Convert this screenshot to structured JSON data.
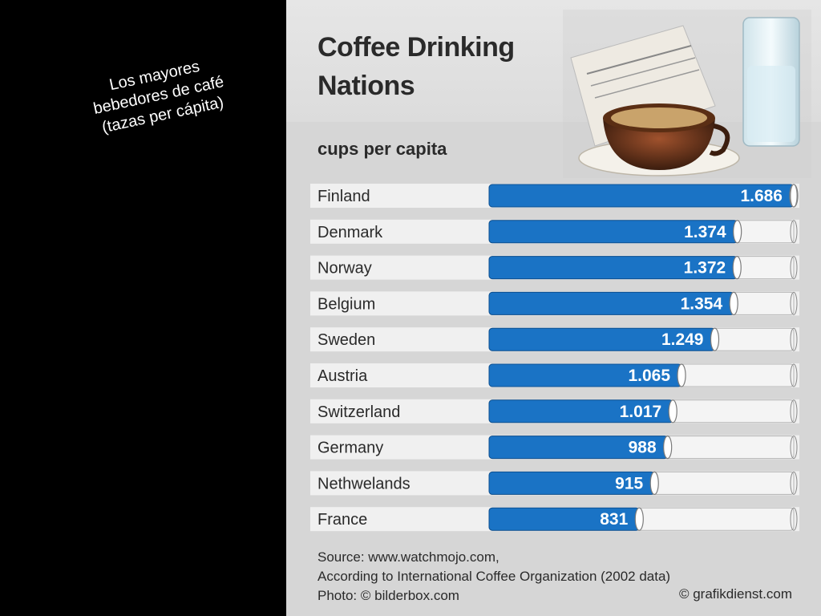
{
  "caption": {
    "lines": [
      "Los mayores",
      "bebedores de café",
      "(tazas per cápita)"
    ]
  },
  "header": {
    "title_line1": "Coffee Drinking",
    "title_line2": "Nations",
    "subtitle": "cups per capita"
  },
  "footer": {
    "source_line1": "Source: www.watchmojo.com,",
    "source_line2": "According to International Coffee Organization (2002 data)",
    "photo_credit": "Photo: © bilderbox.com",
    "graphic_credit": "© grafikdienst.com"
  },
  "colors": {
    "bar_fill": "#1a73c5",
    "bar_track": "#f4f4f4",
    "row_stripe": "#f0f0f0",
    "background": "#d6d6d6"
  },
  "chart_data": {
    "type": "bar",
    "orientation": "horizontal",
    "title": "Coffee Drinking Nations",
    "subtitle": "cups per capita",
    "categories": [
      "Finland",
      "Denmark",
      "Norway",
      "Belgium",
      "Sweden",
      "Austria",
      "Switzerland",
      "Germany",
      "Nethwelands",
      "France"
    ],
    "values": [
      1686,
      1374,
      1372,
      1354,
      1249,
      1065,
      1017,
      988,
      915,
      831
    ],
    "value_labels": [
      "1.686",
      "1.374",
      "1.372",
      "1.354",
      "1.249",
      "1.065",
      "1.017",
      "988",
      "915",
      "831"
    ],
    "xlim": [
      0,
      1686
    ],
    "grid": false,
    "legend": "none"
  }
}
